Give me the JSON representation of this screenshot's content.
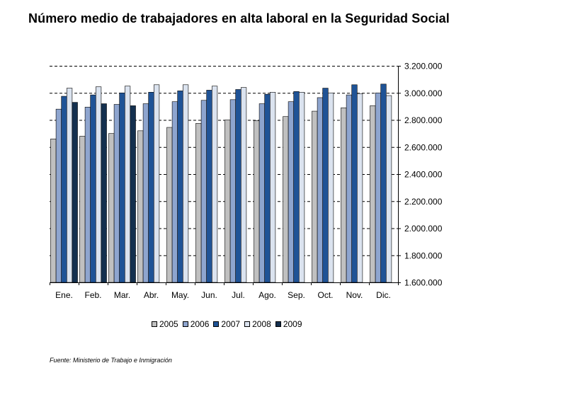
{
  "title": "Número medio de trabajadores en alta laboral en la Seguridad Social",
  "source": "Fuente: Ministerio de Trabajo e Inmigración",
  "chart_data": {
    "type": "bar",
    "title": "Número medio de trabajadores en alta laboral en la Seguridad Social",
    "xlabel": "",
    "ylabel": "",
    "categories": [
      "Ene.",
      "Feb.",
      "Mar.",
      "Abr.",
      "May.",
      "Jun.",
      "Jul.",
      "Ago.",
      "Sep.",
      "Oct.",
      "Nov.",
      "Dic."
    ],
    "ylim": [
      1600000,
      3200000
    ],
    "yticks": [
      1600000,
      1800000,
      2000000,
      2200000,
      2400000,
      2600000,
      2800000,
      3000000,
      3200000
    ],
    "ytick_labels": [
      "1.600.000",
      "1.800.000",
      "2.000.000",
      "2.200.000",
      "2.400.000",
      "2.600.000",
      "2.800.000",
      "3.000.000",
      "3.200.000"
    ],
    "y_axis_side": "right",
    "grid": "dashed horizontal",
    "legend_position": "bottom",
    "series": [
      {
        "name": "2005",
        "color": "#c0c0c0",
        "values": [
          2660000,
          2680000,
          2700000,
          2720000,
          2745000,
          2775000,
          2800000,
          2795000,
          2825000,
          2865000,
          2890000,
          2905000
        ]
      },
      {
        "name": "2006",
        "color": "#8ea5cf",
        "values": [
          2880000,
          2895000,
          2915000,
          2920000,
          2935000,
          2945000,
          2950000,
          2920000,
          2935000,
          2965000,
          2985000,
          3000000
        ]
      },
      {
        "name": "2007",
        "color": "#1f5396",
        "values": [
          2975000,
          2985000,
          3000000,
          3005000,
          3015000,
          3020000,
          3025000,
          2990000,
          3010000,
          3035000,
          3060000,
          3065000
        ]
      },
      {
        "name": "2008",
        "color": "#dbe3ef",
        "values": [
          3035000,
          3045000,
          3050000,
          3060000,
          3060000,
          3050000,
          3040000,
          3005000,
          3005000,
          3000000,
          2995000,
          2980000
        ]
      },
      {
        "name": "2009",
        "color": "#14304f",
        "values": [
          2930000,
          2920000,
          2905000,
          null,
          null,
          null,
          null,
          null,
          null,
          null,
          null,
          null
        ]
      }
    ]
  }
}
